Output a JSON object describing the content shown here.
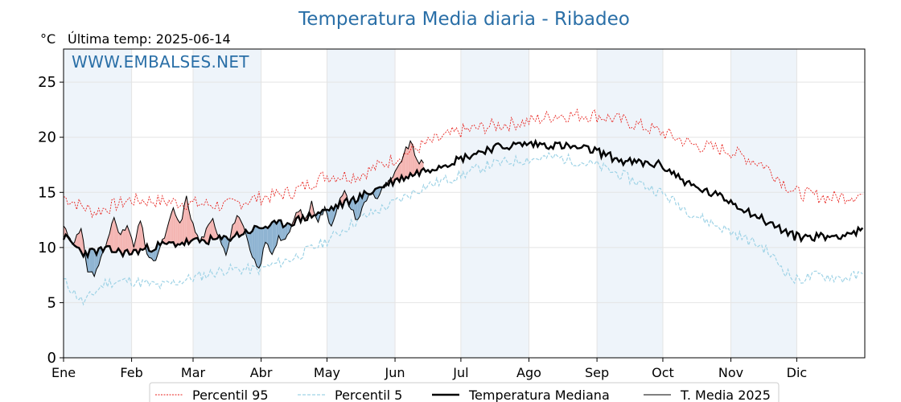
{
  "chart_data": {
    "type": "line",
    "title": "Temperatura Media diaria - Ribadeo",
    "unit_label": "°C",
    "last_temp_label": "Última temp: 2025-06-14",
    "watermark": "WWW.EMBALSES.NET",
    "ylim": [
      0,
      28
    ],
    "y_ticks": [
      0,
      5,
      10,
      15,
      20,
      25
    ],
    "x_ticks": [
      "Ene",
      "Feb",
      "Mar",
      "Abr",
      "May",
      "Jun",
      "Jul",
      "Ago",
      "Sep",
      "Oct",
      "Nov",
      "Dic"
    ],
    "grid": true,
    "legend_position": "bottom",
    "legend": [
      "Percentil 95",
      "Percentil 5",
      "Temperatura Mediana",
      "T. Media 2025"
    ],
    "colors": {
      "p95": "#e8231e",
      "p5": "#9fd3e6",
      "median": "#000000",
      "current": "#000000",
      "above_fill": "#f4b6b3",
      "below_fill": "#8fb4d2",
      "month_shade": "#eef4fa",
      "title": "#2a6fa7"
    },
    "series": [
      {
        "name": "Percentil 95",
        "points": [
          [
            1,
            14.6
          ],
          [
            15,
            13.2
          ],
          [
            31,
            14.3
          ],
          [
            45,
            14.2
          ],
          [
            59,
            14.0
          ],
          [
            75,
            13.8
          ],
          [
            90,
            14.5
          ],
          [
            105,
            15.0
          ],
          [
            120,
            16.5
          ],
          [
            135,
            16.5
          ],
          [
            151,
            18.0
          ],
          [
            165,
            19.3
          ],
          [
            181,
            20.5
          ],
          [
            195,
            21.0
          ],
          [
            212,
            21.4
          ],
          [
            225,
            22.0
          ],
          [
            243,
            22.0
          ],
          [
            256,
            21.5
          ],
          [
            273,
            20.5
          ],
          [
            288,
            19.3
          ],
          [
            304,
            18.8
          ],
          [
            320,
            17.5
          ],
          [
            334,
            15.0
          ],
          [
            350,
            14.5
          ],
          [
            365,
            14.8
          ]
        ]
      },
      {
        "name": "Percentil 5",
        "points": [
          [
            1,
            7.0
          ],
          [
            10,
            5.0
          ],
          [
            20,
            6.8
          ],
          [
            31,
            7.0
          ],
          [
            45,
            6.5
          ],
          [
            59,
            7.2
          ],
          [
            75,
            8.0
          ],
          [
            90,
            8.0
          ],
          [
            105,
            9.0
          ],
          [
            120,
            10.5
          ],
          [
            135,
            12.5
          ],
          [
            151,
            14.0
          ],
          [
            165,
            15.5
          ],
          [
            181,
            16.5
          ],
          [
            195,
            17.5
          ],
          [
            212,
            18.0
          ],
          [
            225,
            18.2
          ],
          [
            243,
            17.5
          ],
          [
            256,
            16.5
          ],
          [
            273,
            15.0
          ],
          [
            288,
            13.0
          ],
          [
            304,
            11.5
          ],
          [
            320,
            10.0
          ],
          [
            334,
            7.0
          ],
          [
            345,
            7.5
          ],
          [
            356,
            7.2
          ],
          [
            365,
            7.5
          ]
        ]
      },
      {
        "name": "Temperatura Mediana",
        "points": [
          [
            1,
            11.0
          ],
          [
            10,
            9.5
          ],
          [
            20,
            9.8
          ],
          [
            31,
            9.5
          ],
          [
            45,
            10.2
          ],
          [
            59,
            10.5
          ],
          [
            75,
            10.8
          ],
          [
            90,
            11.8
          ],
          [
            105,
            12.3
          ],
          [
            120,
            13.3
          ],
          [
            135,
            14.5
          ],
          [
            151,
            16.0
          ],
          [
            165,
            17.0
          ],
          [
            181,
            18.0
          ],
          [
            195,
            19.0
          ],
          [
            212,
            19.4
          ],
          [
            225,
            19.3
          ],
          [
            243,
            18.8
          ],
          [
            256,
            17.8
          ],
          [
            273,
            17.5
          ],
          [
            288,
            15.5
          ],
          [
            304,
            14.3
          ],
          [
            320,
            12.5
          ],
          [
            334,
            11.0
          ],
          [
            350,
            11.0
          ],
          [
            365,
            11.5
          ]
        ]
      },
      {
        "name": "T. Media 2025",
        "points": [
          [
            1,
            12.0
          ],
          [
            5,
            10.5
          ],
          [
            9,
            11.5
          ],
          [
            12,
            8.0
          ],
          [
            15,
            7.5
          ],
          [
            18,
            9.0
          ],
          [
            21,
            10.5
          ],
          [
            24,
            13.0
          ],
          [
            27,
            11.0
          ],
          [
            30,
            12.0
          ],
          [
            33,
            10.0
          ],
          [
            36,
            12.5
          ],
          [
            39,
            9.5
          ],
          [
            42,
            8.5
          ],
          [
            45,
            10.0
          ],
          [
            48,
            11.5
          ],
          [
            51,
            13.5
          ],
          [
            54,
            12.0
          ],
          [
            57,
            14.5
          ],
          [
            60,
            12.0
          ],
          [
            63,
            10.5
          ],
          [
            66,
            11.5
          ],
          [
            69,
            12.5
          ],
          [
            72,
            11.0
          ],
          [
            75,
            9.5
          ],
          [
            78,
            12.0
          ],
          [
            81,
            13.0
          ],
          [
            84,
            11.0
          ],
          [
            87,
            9.0
          ],
          [
            90,
            8.0
          ],
          [
            93,
            10.5
          ],
          [
            96,
            9.5
          ],
          [
            99,
            11.0
          ],
          [
            102,
            10.5
          ],
          [
            105,
            12.0
          ],
          [
            108,
            13.5
          ],
          [
            111,
            12.5
          ],
          [
            114,
            14.0
          ],
          [
            117,
            12.5
          ],
          [
            120,
            13.5
          ],
          [
            123,
            12.0
          ],
          [
            126,
            14.0
          ],
          [
            129,
            15.0
          ],
          [
            132,
            13.5
          ],
          [
            135,
            12.5
          ],
          [
            138,
            14.0
          ],
          [
            141,
            15.0
          ],
          [
            144,
            14.5
          ],
          [
            147,
            15.5
          ],
          [
            150,
            16.0
          ],
          [
            153,
            17.0
          ],
          [
            156,
            18.5
          ],
          [
            159,
            19.5
          ],
          [
            162,
            18.0
          ],
          [
            165,
            17.5
          ]
        ]
      }
    ]
  }
}
